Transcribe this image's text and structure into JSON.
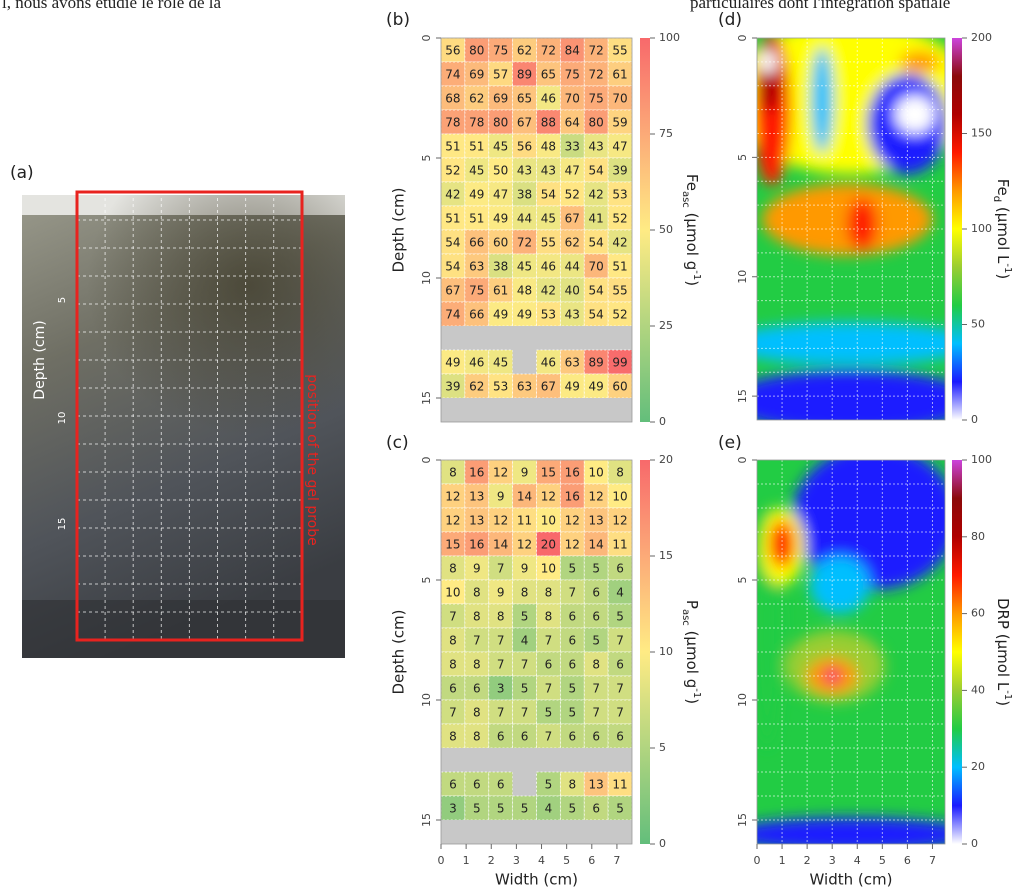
{
  "header_fragments": [
    "l, nous avons étudié le rôle de la",
    "particulaires dont l'intégration spatiale"
  ],
  "photo_panel": {
    "label": "(a)",
    "axis_label": "Depth (cm)",
    "ticks": [
      "5",
      "10",
      "15"
    ],
    "annotation": "position of the gel probe"
  },
  "chart_data": [
    {
      "type": "heatmap",
      "panel_label": "(b)",
      "ylabel": "Depth (cm)",
      "xlim": [
        0,
        7.6
      ],
      "ylim": [
        0,
        16
      ],
      "yticks": [
        0,
        5,
        10,
        15
      ],
      "clim": [
        0,
        100
      ],
      "cticks": [
        0,
        25,
        50,
        75,
        100
      ],
      "colorscale": [
        "#63be7b",
        "#ffeb84",
        "#f8696b"
      ],
      "missing_color": "#c8c8c8",
      "colorbar_label": [
        {
          "t": "Fe"
        },
        {
          "t": "asc",
          "shift": "sub"
        },
        {
          "t": " (µmol g"
        },
        {
          "t": "-1",
          "shift": "super"
        },
        {
          "t": ")"
        }
      ],
      "values": [
        [
          56,
          80,
          75,
          62,
          72,
          84,
          72,
          55
        ],
        [
          74,
          69,
          57,
          89,
          65,
          75,
          72,
          61
        ],
        [
          68,
          62,
          69,
          65,
          46,
          70,
          75,
          70
        ],
        [
          78,
          78,
          80,
          67,
          88,
          64,
          80,
          59
        ],
        [
          51,
          51,
          45,
          56,
          48,
          33,
          43,
          47
        ],
        [
          52,
          45,
          50,
          43,
          43,
          47,
          54,
          39
        ],
        [
          42,
          49,
          47,
          38,
          54,
          52,
          42,
          53
        ],
        [
          51,
          51,
          49,
          44,
          45,
          67,
          41,
          52
        ],
        [
          54,
          66,
          60,
          72,
          55,
          62,
          54,
          42
        ],
        [
          54,
          63,
          38,
          45,
          46,
          44,
          70,
          51
        ],
        [
          67,
          75,
          61,
          48,
          42,
          40,
          54,
          55
        ],
        [
          74,
          66,
          49,
          49,
          53,
          43,
          54,
          52
        ],
        [
          null,
          null,
          null,
          null,
          null,
          null,
          null,
          null
        ],
        [
          49,
          46,
          45,
          null,
          46,
          63,
          89,
          99
        ],
        [
          39,
          62,
          53,
          63,
          67,
          49,
          49,
          60
        ],
        [
          null,
          null,
          null,
          null,
          null,
          null,
          null,
          null
        ]
      ]
    },
    {
      "type": "heatmap",
      "panel_label": "(c)",
      "ylabel": "Depth (cm)",
      "xlabel": "Width (cm)",
      "xlim": [
        0,
        7.6
      ],
      "xticks": [
        0,
        1,
        2,
        3,
        4,
        5,
        6,
        7
      ],
      "ylim": [
        0,
        16
      ],
      "yticks": [
        0,
        5,
        10,
        15
      ],
      "clim": [
        0,
        20
      ],
      "cticks": [
        0,
        5,
        10,
        15,
        20
      ],
      "colorscale": [
        "#63be7b",
        "#ffeb84",
        "#f8696b"
      ],
      "missing_color": "#c8c8c8",
      "colorbar_label": [
        {
          "t": "P"
        },
        {
          "t": "asc",
          "shift": "sub"
        },
        {
          "t": " (µmol g"
        },
        {
          "t": "-1",
          "shift": "super"
        },
        {
          "t": ")"
        }
      ],
      "values": [
        [
          8,
          16,
          12,
          9,
          15,
          16,
          10,
          8
        ],
        [
          12,
          13,
          9,
          14,
          12,
          16,
          12,
          10
        ],
        [
          12,
          13,
          12,
          11,
          10,
          12,
          13,
          12
        ],
        [
          15,
          16,
          14,
          12,
          20,
          12,
          14,
          11
        ],
        [
          8,
          9,
          7,
          9,
          10,
          5,
          5,
          6
        ],
        [
          10,
          8,
          9,
          8,
          8,
          7,
          6,
          4
        ],
        [
          7,
          8,
          8,
          5,
          8,
          6,
          6,
          5
        ],
        [
          8,
          7,
          7,
          4,
          7,
          6,
          5,
          7
        ],
        [
          8,
          8,
          7,
          7,
          6,
          6,
          8,
          6
        ],
        [
          6,
          6,
          3,
          5,
          7,
          5,
          7,
          7
        ],
        [
          7,
          8,
          7,
          7,
          5,
          5,
          7,
          7
        ],
        [
          8,
          8,
          6,
          6,
          7,
          6,
          6,
          6
        ],
        [
          null,
          null,
          null,
          null,
          null,
          null,
          null,
          null
        ],
        [
          6,
          6,
          6,
          null,
          5,
          8,
          13,
          11
        ],
        [
          3,
          5,
          5,
          5,
          4,
          5,
          6,
          5
        ],
        [
          null,
          null,
          null,
          null,
          null,
          null,
          null,
          null
        ]
      ]
    },
    {
      "type": "map",
      "panel_label": "(d)",
      "xlim": [
        0,
        7.5
      ],
      "ylim": [
        0,
        16
      ],
      "yticks": [
        0,
        5,
        10,
        15
      ],
      "clim": [
        0,
        200
      ],
      "cticks": [
        0,
        50,
        100,
        150,
        200
      ],
      "colorscale": [
        "#ffffff",
        "#1a1aff",
        "#00bfff",
        "#22cc44",
        "#9acd32",
        "#ffff00",
        "#ff9900",
        "#ff1a00",
        "#b00000",
        "#8b0a0a",
        "#cc44dd"
      ],
      "colorbar_label": [
        {
          "t": "Fe"
        },
        {
          "t": "d",
          "shift": "sub"
        },
        {
          "t": " (µmol L"
        },
        {
          "t": "-1",
          "shift": "super"
        },
        {
          "t": ")"
        }
      ]
    },
    {
      "type": "map",
      "panel_label": "(e)",
      "xlabel": "Width (cm)",
      "xlim": [
        0,
        7.5
      ],
      "xticks": [
        0,
        1,
        2,
        3,
        4,
        5,
        6,
        7
      ],
      "ylim": [
        0,
        16
      ],
      "yticks": [
        0,
        5,
        10,
        15
      ],
      "clim": [
        0,
        100
      ],
      "cticks": [
        0,
        20,
        40,
        60,
        80,
        100
      ],
      "colorscale": [
        "#ffffff",
        "#1a1aff",
        "#00bfff",
        "#22cc44",
        "#9acd32",
        "#ffff00",
        "#ff9900",
        "#ff1a00",
        "#b00000",
        "#8b0a0a",
        "#cc44dd"
      ],
      "colorbar_label": [
        {
          "t": "DRP (µmol L"
        },
        {
          "t": "-1",
          "shift": "super"
        },
        {
          "t": ")"
        }
      ]
    }
  ]
}
